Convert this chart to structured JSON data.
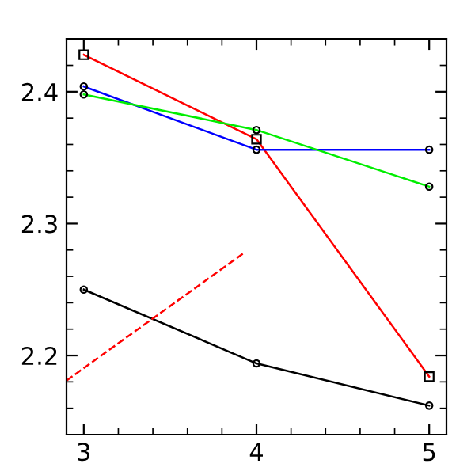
{
  "chart_data": {
    "type": "line",
    "xlim": [
      2.9,
      5.1
    ],
    "xticks": [
      3,
      4,
      5
    ],
    "ylim": [
      2.14,
      2.44
    ],
    "yticks": [
      2.2,
      2.3,
      2.4
    ],
    "grid": false,
    "series": [
      {
        "color": "#ff0000",
        "marker": "square",
        "x": [
          3,
          4,
          5
        ],
        "values": [
          2.428,
          2.364,
          2.184
        ]
      },
      {
        "color": "#0000ff",
        "marker": "circle",
        "x": [
          3,
          4,
          5
        ],
        "values": [
          2.404,
          2.356,
          2.356
        ]
      },
      {
        "color": "#00ee00",
        "marker": "circle",
        "x": [
          3,
          4,
          5
        ],
        "values": [
          2.398,
          2.371,
          2.328
        ]
      },
      {
        "color": "#000000",
        "marker": "circle",
        "x": [
          3,
          4,
          5
        ],
        "values": [
          2.25,
          2.194,
          2.162
        ]
      },
      {
        "color": "#ff0000",
        "marker": "none",
        "line_style": "dashed",
        "x": [
          2.9,
          3.93
        ],
        "values": [
          2.181,
          2.278
        ]
      }
    ]
  }
}
